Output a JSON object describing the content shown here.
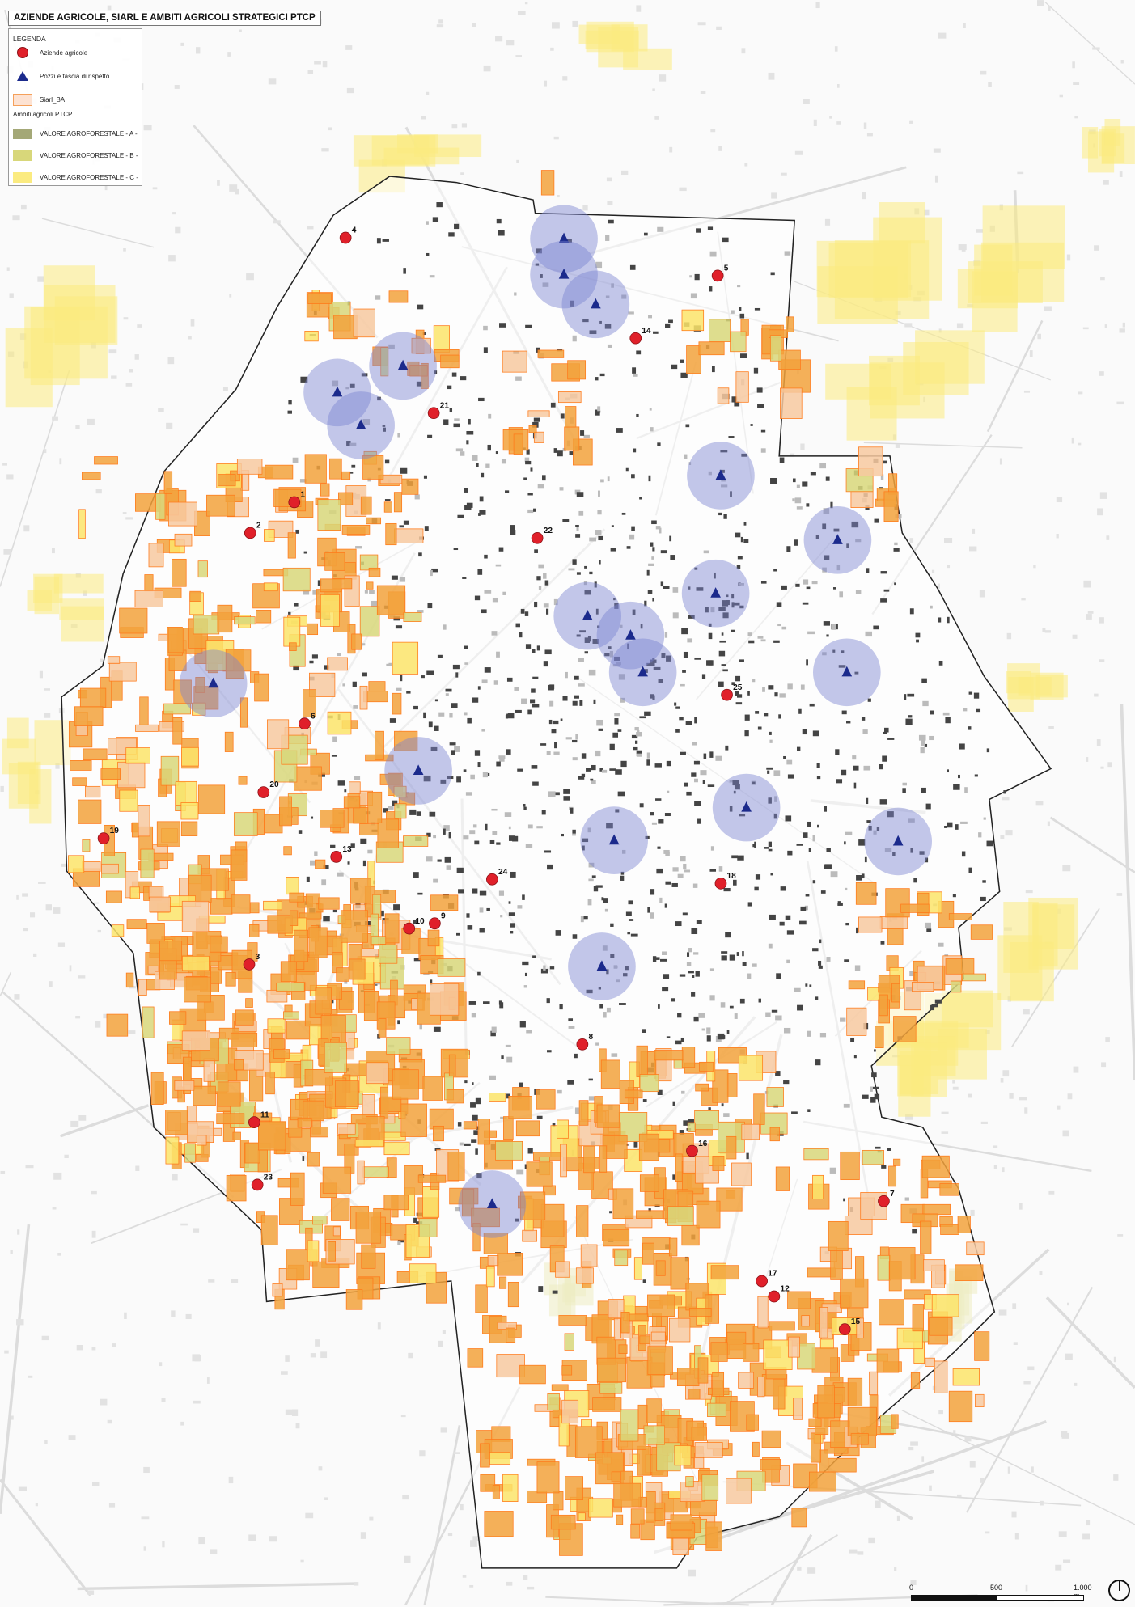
{
  "title": "AZIENDE AGRICOLE, SIARL E AMBITI AGRICOLI STRATEGICI PTCP",
  "legend": {
    "heading": "LEGENDA",
    "items": [
      {
        "label": "Aziende agricole",
        "icon": "red-circle-icon",
        "color": "#e0202a"
      },
      {
        "label": "Pozzi e fascia di rispetto",
        "icon": "blue-triangle-icon",
        "color": "#1b2a8c"
      },
      {
        "label": "Siarl_BA",
        "icon": "orange-hatched-square-icon",
        "color": "#f5a05a"
      }
    ],
    "subheading": "Ambiti agricoli PTCP",
    "ambiti": [
      {
        "label": "VALORE AGROFORESTALE - A -",
        "color": "#a4a877"
      },
      {
        "label": "VALORE AGROFORESTALE - B -",
        "color": "#d8d77a"
      },
      {
        "label": "VALORE AGROFORESTALE - C -",
        "color": "#fbeb80"
      }
    ]
  },
  "farms": [
    "1",
    "2",
    "3",
    "4",
    "5",
    "6",
    "7",
    "8",
    "9",
    "10",
    "11",
    "12",
    "13",
    "14",
    "15",
    "16",
    "17",
    "18",
    "19",
    "20",
    "21",
    "22",
    "23",
    "24",
    "25"
  ],
  "wells_count": 20,
  "scale_bar": {
    "labels": [
      "0",
      "500",
      "1.000 m"
    ]
  },
  "north_arrow": "north-arrow-icon"
}
